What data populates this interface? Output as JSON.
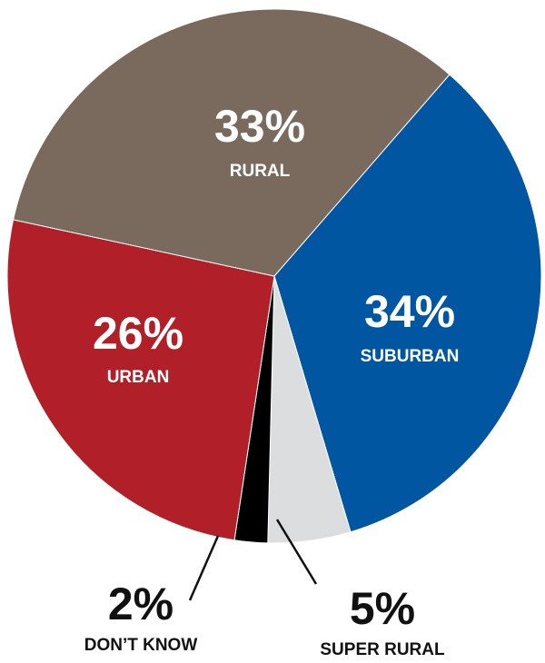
{
  "chart_data": {
    "type": "pie",
    "slices": [
      {
        "label": "SUBURBAN",
        "value": 34,
        "value_label": "34%",
        "color": "#0056a1"
      },
      {
        "label": "SUPER RURAL",
        "value": 5,
        "value_label": "5%",
        "color": "#dcdddf"
      },
      {
        "label": "DON’T KNOW",
        "value": 2,
        "value_label": "2%",
        "color": "#000000"
      },
      {
        "label": "URBAN",
        "value": 26,
        "value_label": "26%",
        "color": "#b11f29"
      },
      {
        "label": "RURAL",
        "value": 33,
        "value_label": "33%",
        "color": "#7a6a5d"
      }
    ]
  }
}
